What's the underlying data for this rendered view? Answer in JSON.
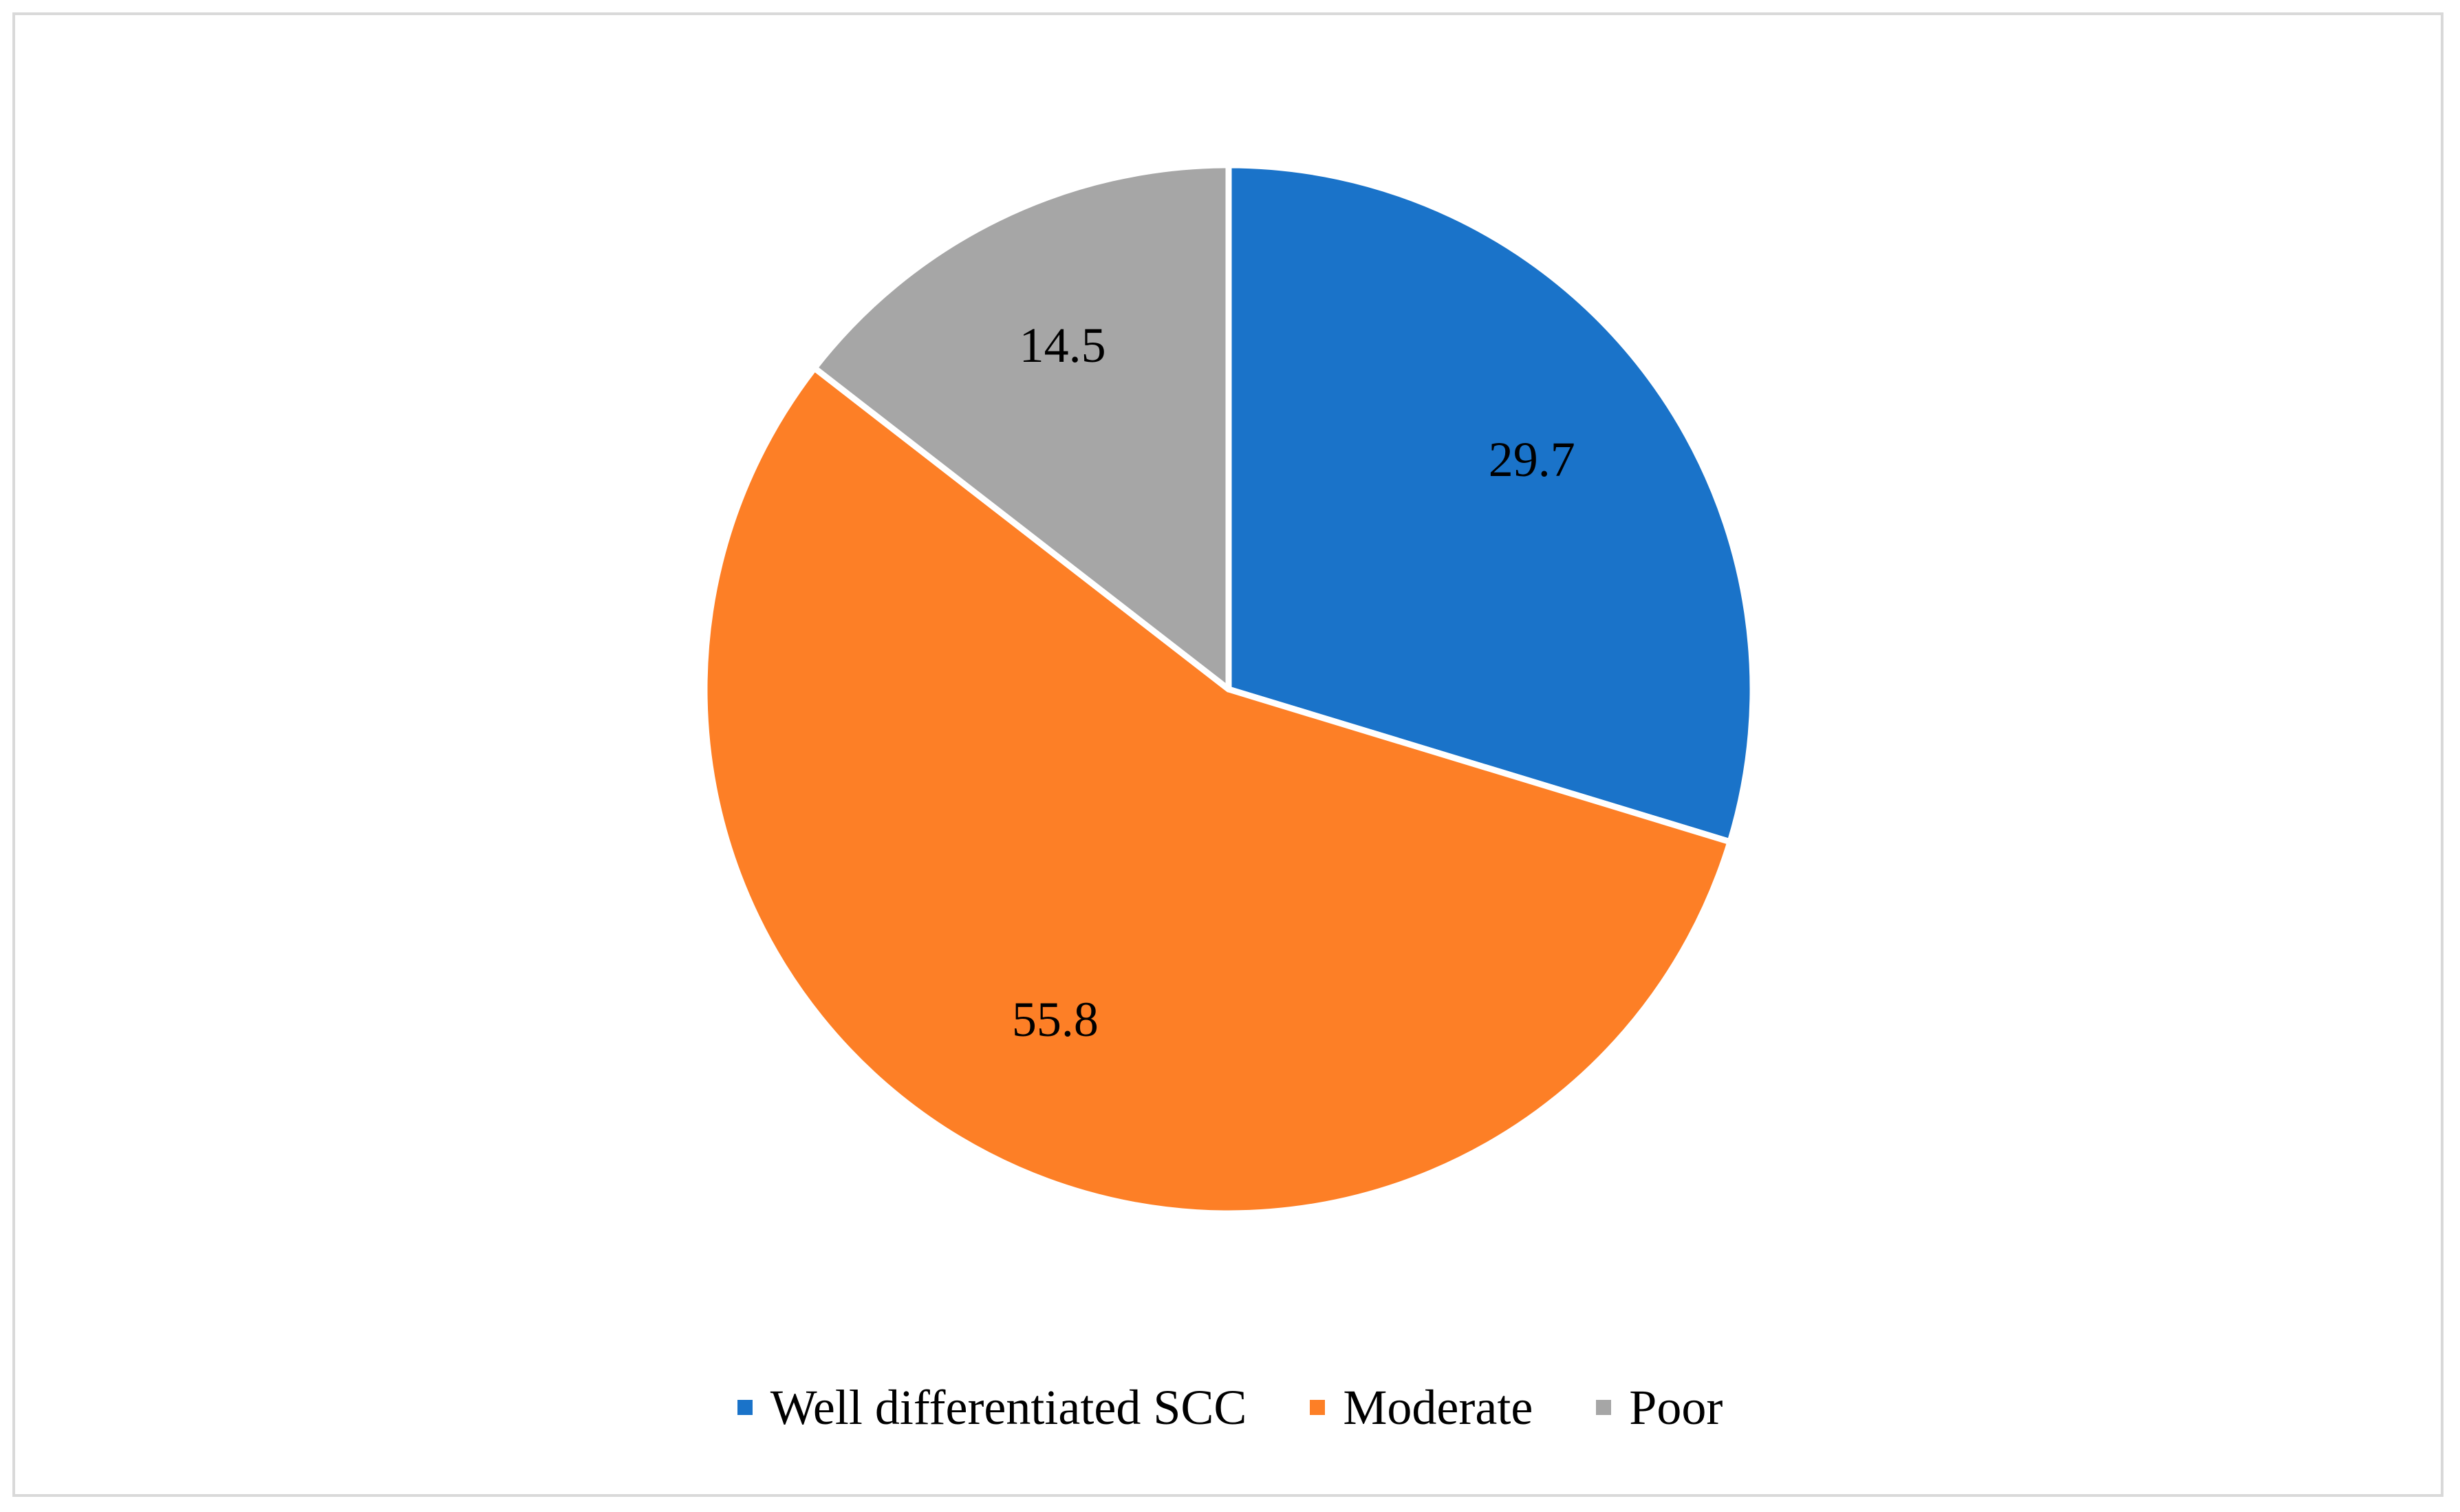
{
  "chart_data": {
    "type": "pie",
    "title": "",
    "categories": [
      "Well differentiated SCC",
      "Moderate",
      "Poor"
    ],
    "values": [
      29.7,
      55.8,
      14.5
    ],
    "data_labels": [
      "29.7",
      "55.8",
      "14.5"
    ],
    "colors": [
      "#1a73c9",
      "#fd7f26",
      "#a6a6a6"
    ],
    "start_angle": "12 o'clock",
    "direction": "clockwise",
    "legend": {
      "position": "bottom",
      "entries": [
        "Well differentiated SCC",
        "Moderate",
        "Poor"
      ]
    }
  }
}
